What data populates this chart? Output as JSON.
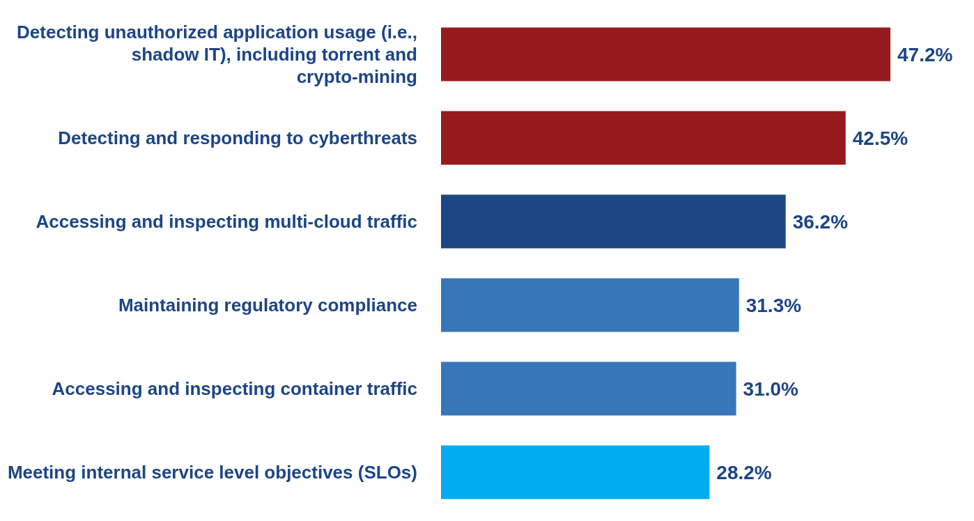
{
  "chart_data": {
    "type": "bar",
    "orientation": "horizontal",
    "categories": [
      "Detecting unauthorized application usage (i.e., shadow IT), including torrent and crypto-mining",
      "Detecting and responding to cyberthreats",
      "Accessing and inspecting multi-cloud traffic",
      "Maintaining regulatory compliance",
      "Accessing and inspecting container traffic",
      "Meeting internal service level objectives (SLOs)"
    ],
    "values": [
      47.2,
      42.5,
      36.2,
      31.3,
      31.0,
      28.2
    ],
    "value_labels": [
      "47.2%",
      "42.5%",
      "36.2%",
      "31.3%",
      "31.0%",
      "28.2%"
    ],
    "colors": [
      "#961b1f",
      "#961b1f",
      "#1c4684",
      "#3776b9",
      "#3776b9",
      "#00aeef"
    ]
  }
}
